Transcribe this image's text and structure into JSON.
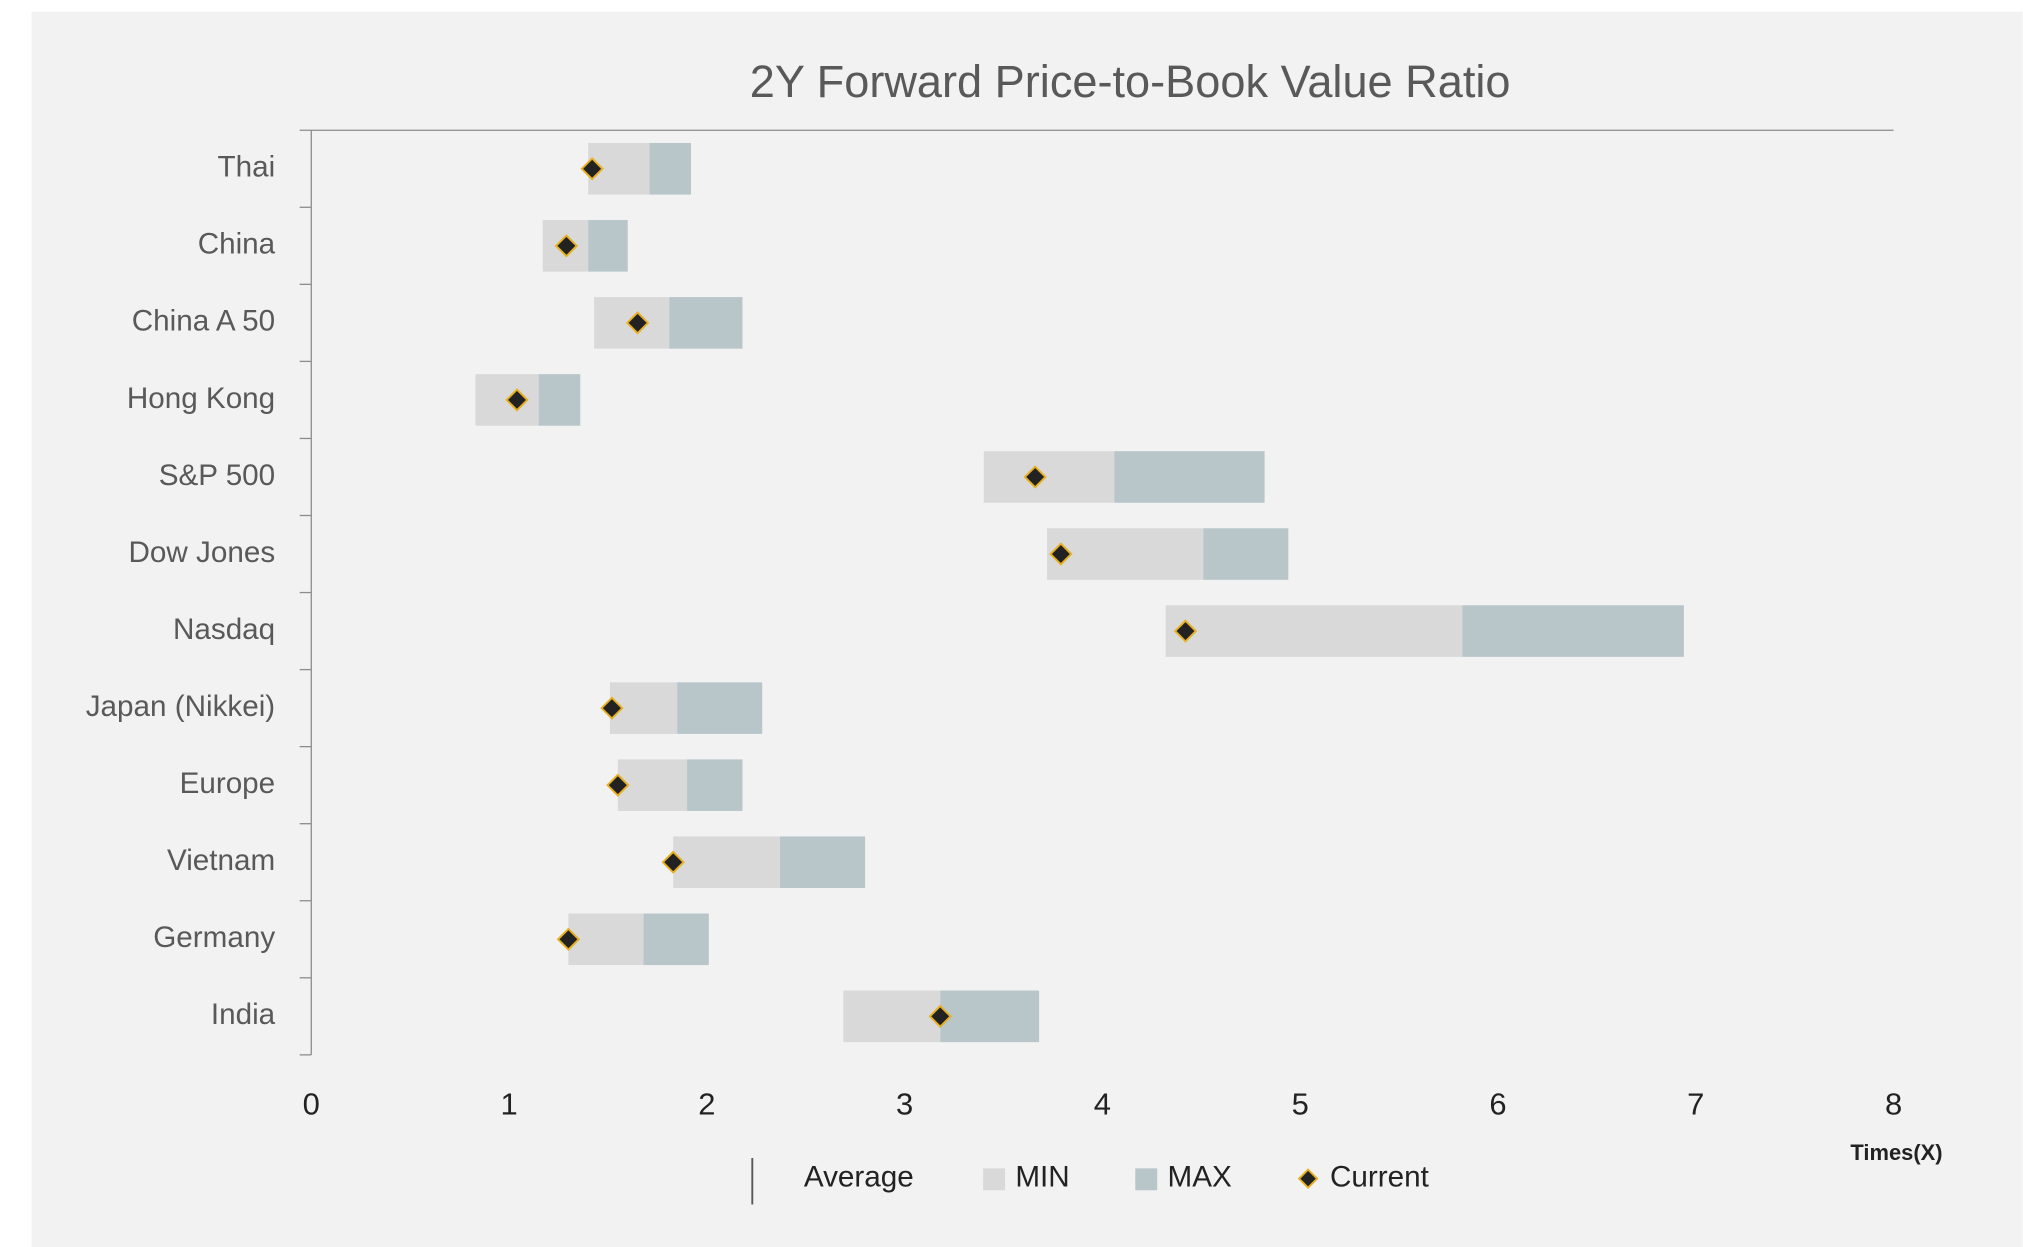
{
  "chart_data": {
    "type": "floating-range",
    "title": "2Y Forward Price-to-Book Value Ratio",
    "x_label": "Times(X)",
    "categories": [
      "Thai",
      "China",
      "China A 50",
      "Hong Kong",
      "S&P 500",
      "Dow Jones",
      "Nasdaq",
      "Japan (Nikkei)",
      "Europe",
      "Vietnam",
      "Germany",
      "India"
    ],
    "series": [
      {
        "name": "Average",
        "color": "#595959",
        "values": [
          1.71,
          1.4,
          1.81,
          1.15,
          4.06,
          4.51,
          5.82,
          1.85,
          1.9,
          2.37,
          1.68,
          3.18
        ]
      },
      {
        "name": "MIN",
        "color": "#d9d9d9",
        "values": [
          1.4,
          1.17,
          1.43,
          0.83,
          3.4,
          3.72,
          4.32,
          1.51,
          1.55,
          1.83,
          1.3,
          2.69
        ]
      },
      {
        "name": "MAX",
        "color": "#b8c6ca",
        "values": [
          1.92,
          1.6,
          2.18,
          1.36,
          4.82,
          4.94,
          6.94,
          2.28,
          2.18,
          2.8,
          2.01,
          3.68
        ]
      },
      {
        "name": "Current",
        "color": "#222222",
        "values": [
          1.42,
          1.29,
          1.65,
          1.04,
          3.66,
          3.79,
          4.42,
          1.52,
          1.55,
          1.83,
          1.3,
          3.18
        ]
      }
    ],
    "xlim": [
      0,
      8
    ],
    "xticks": [
      0,
      1,
      2,
      3,
      4,
      5,
      6,
      7,
      8
    ]
  }
}
